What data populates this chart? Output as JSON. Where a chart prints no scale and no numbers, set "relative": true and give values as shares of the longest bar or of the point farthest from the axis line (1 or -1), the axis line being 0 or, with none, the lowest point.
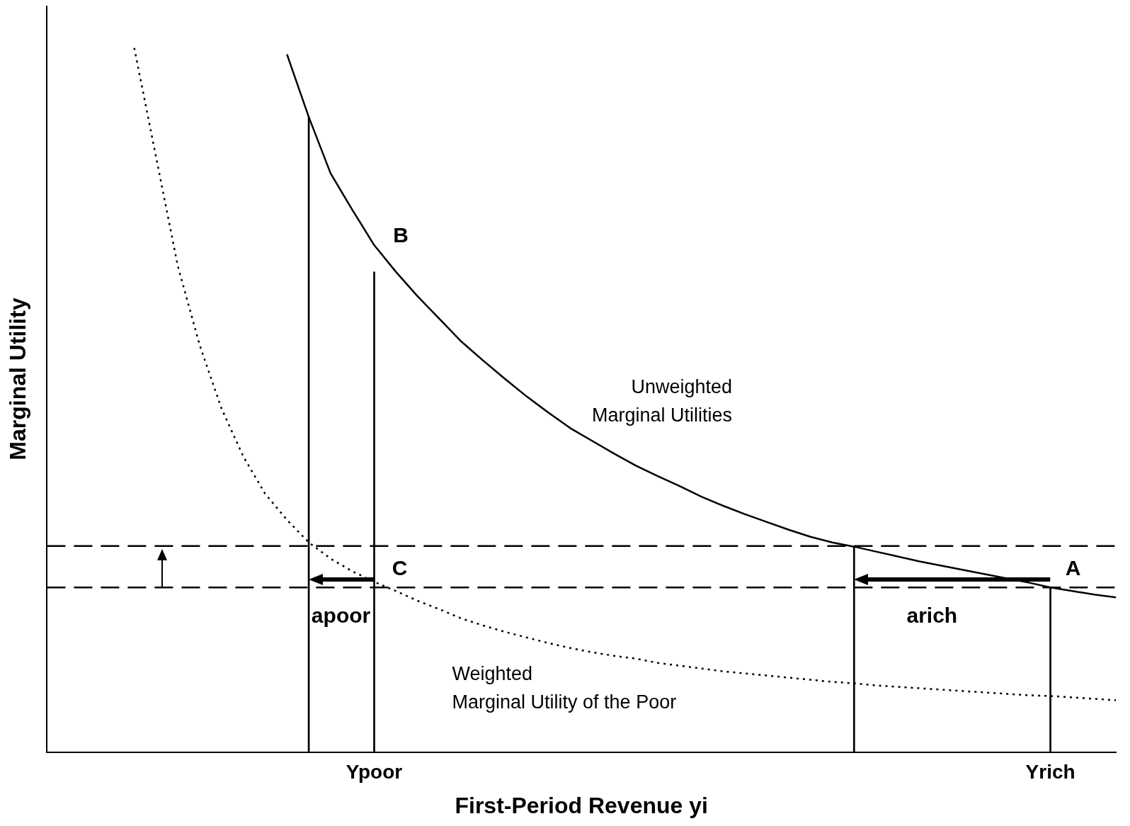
{
  "chart_data": {
    "type": "line",
    "relative": true,
    "xlabel": "First-Period Revenue yi",
    "ylabel": "Marginal Utility",
    "grid": false,
    "legend": false,
    "marker": "none",
    "categories": [
      null,
      null,
      null,
      null,
      null,
      null,
      null,
      null,
      null,
      null,
      null,
      null,
      null,
      null,
      null,
      "Ypoor",
      null,
      null,
      null,
      null,
      null,
      null,
      null,
      null,
      null,
      null,
      null,
      null,
      null,
      null,
      null,
      null,
      null,
      null,
      null,
      null,
      null,
      null,
      null,
      null,
      null,
      null,
      null,
      null,
      null,
      null,
      "Yrich",
      null,
      null,
      null
    ],
    "series": [
      {
        "name": "Unweighted Marginal Utilities",
        "color": "#000000",
        "line_style": "solid",
        "values": [
          null,
          null,
          null,
          null,
          null,
          null,
          null,
          null,
          null,
          null,
          null,
          0.991,
          0.902,
          0.822,
          0.77,
          0.72,
          0.682,
          0.647,
          0.615,
          0.583,
          0.556,
          0.53,
          0.505,
          0.482,
          0.46,
          0.442,
          0.424,
          0.407,
          0.392,
          0.378,
          0.363,
          0.35,
          0.338,
          0.327,
          0.316,
          0.306,
          0.298,
          0.292,
          0.285,
          0.278,
          0.271,
          0.265,
          0.259,
          0.253,
          0.247,
          0.241,
          0.234,
          0.229,
          0.224,
          0.22
        ]
      },
      {
        "name": "Weighted Marginal Utility of the Poor",
        "color": "#000000",
        "line_style": "dotted",
        "values": [
          null,
          null,
          null,
          null,
          1,
          0.845,
          0.69,
          0.578,
          0.488,
          0.42,
          0.367,
          0.33,
          0.298,
          0.275,
          0.257,
          0.242,
          0.229,
          0.215,
          0.203,
          0.19,
          0.18,
          0.171,
          0.163,
          0.155,
          0.148,
          0.142,
          0.137,
          0.133,
          0.127,
          0.123,
          0.119,
          0.115,
          0.112,
          0.109,
          0.106,
          0.103,
          0.1,
          0.098,
          0.095,
          0.093,
          0.091,
          0.089,
          0.087,
          0.085,
          0.083,
          0.081,
          0.08,
          0.078,
          0.076,
          0.074
        ]
      },
      {
        "type": "bar",
        "color": "#000000",
        "values": [
          null,
          null,
          null,
          null,
          null,
          null,
          null,
          null,
          null,
          null,
          null,
          null,
          0.902,
          null,
          null,
          0.682,
          null,
          null,
          null,
          null,
          null,
          null,
          null,
          null,
          null,
          null,
          null,
          null,
          null,
          null,
          null,
          null,
          null,
          null,
          null,
          null,
          null,
          0.292,
          null,
          null,
          null,
          null,
          null,
          null,
          null,
          null,
          0.234,
          null,
          null,
          null
        ]
      }
    ],
    "ref_lines": [
      {
        "axis": "y",
        "value": 0.293,
        "color": "#000000",
        "line_style": "dashed"
      },
      {
        "axis": "y",
        "value": 0.234,
        "color": "#000000",
        "line_style": "dashed"
      }
    ],
    "annotations": [
      "B",
      "C",
      "A",
      "apoor",
      "arich"
    ]
  }
}
